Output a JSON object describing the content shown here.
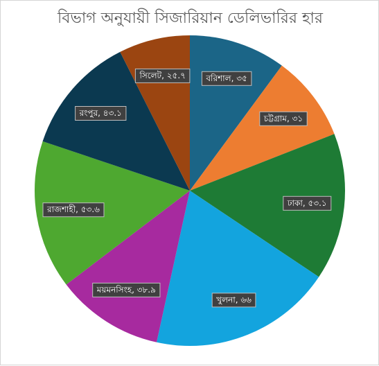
{
  "chart_data": {
    "type": "pie",
    "title": "বিভাগ অনুযায়ী সিজারিয়ান ডেলিভারির হার",
    "slices": [
      {
        "label": "বরিশাল",
        "value_text": "৩৫",
        "value": 35,
        "color": "#1b6587"
      },
      {
        "label": "চট্টগ্রাম",
        "value_text": "৩১",
        "value": 31,
        "color": "#ed7d31"
      },
      {
        "label": "ঢাকা",
        "value_text": "৫৩.১",
        "value": 53.1,
        "color": "#1e7b35"
      },
      {
        "label": "খুলনা",
        "value_text": "৬৬",
        "value": 66,
        "color": "#13a4de"
      },
      {
        "label": "ময়মনসিংহ",
        "value_text": "৩৮.৯",
        "value": 38.9,
        "color": "#a72a9f"
      },
      {
        "label": "রাজশাহী",
        "value_text": "৫৩.৬",
        "value": 53.6,
        "color": "#4ea830"
      },
      {
        "label": "রংপুর",
        "value_text": "৪৩.১",
        "value": 43.1,
        "color": "#0b3950"
      },
      {
        "label": "সিলেট",
        "value_text": "২৫.৭",
        "value": 25.7,
        "color": "#9b4511"
      }
    ],
    "start_angle": "12 o'clock",
    "direction": "clockwise",
    "legend": "none"
  }
}
